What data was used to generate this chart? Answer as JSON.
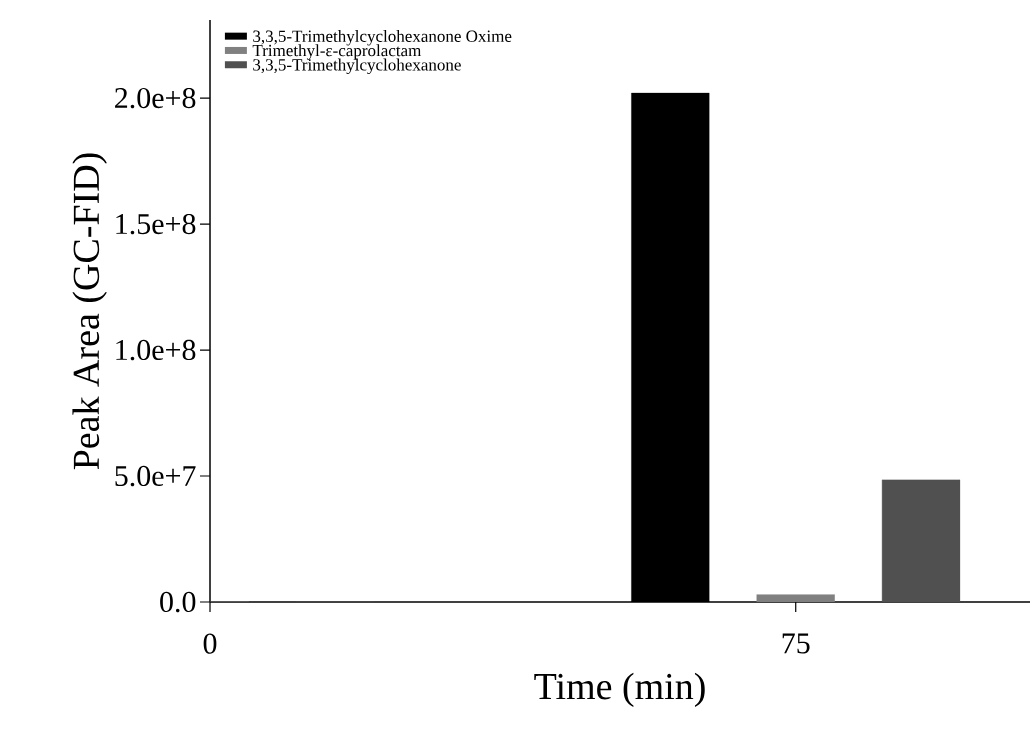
{
  "chart_data": {
    "type": "bar",
    "xlabel": "Time (min)",
    "ylabel": "Peak Area (GC-FID)",
    "categories": [
      "0",
      "75"
    ],
    "series": [
      {
        "name": "3,3,5-Trimethylcyclohexanone Oxime",
        "color": "#000000",
        "values": [
          0,
          202000000
        ]
      },
      {
        "name": "Trimethyl-ε-caprolactam",
        "color": "#808080",
        "values": [
          0,
          3000000
        ]
      },
      {
        "name": "3,3,5-Trimethylcyclohexanone",
        "color": "#505050",
        "values": [
          0,
          48500000
        ]
      }
    ],
    "ylim": [
      0,
      231000000
    ],
    "yticks": [
      {
        "value": 0,
        "label": "0.0"
      },
      {
        "value": 50000000,
        "label": "5.0e+7"
      },
      {
        "value": 100000000,
        "label": "1.0e+8"
      },
      {
        "value": 150000000,
        "label": "1.5e+8"
      },
      {
        "value": 200000000,
        "label": "2.0e+8"
      }
    ],
    "legend": "top left",
    "grid": false
  }
}
